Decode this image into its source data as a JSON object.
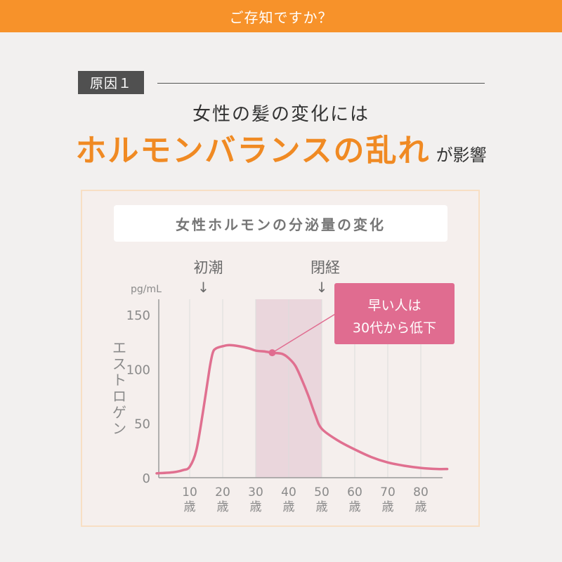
{
  "banner": {
    "text": "ご存知ですか？"
  },
  "reason": {
    "tag": "原因１"
  },
  "heading": {
    "line1": "女性の髪の変化には",
    "emphasis": "ホルモンバランスの乱れ",
    "suffix": "が影響"
  },
  "colors": {
    "banner": "#f7922a",
    "emphasis": "#f08a23",
    "curve": "#e07090",
    "highlight": "#e6cdd6",
    "callout": "#e06c90"
  },
  "chart_data": {
    "type": "line",
    "title": "女性ホルモンの分泌量の変化",
    "ylabel": "エストロゲン",
    "yunit": "pg/mL",
    "xlim": [
      0,
      88
    ],
    "ylim": [
      0,
      150
    ],
    "yticks": [
      0,
      50,
      100,
      150
    ],
    "xticks": [
      {
        "value": 10,
        "num": "10",
        "unit": "歳"
      },
      {
        "value": 20,
        "num": "20",
        "unit": "歳"
      },
      {
        "value": 30,
        "num": "30",
        "unit": "歳"
      },
      {
        "value": 40,
        "num": "40",
        "unit": "歳"
      },
      {
        "value": 50,
        "num": "50",
        "unit": "歳"
      },
      {
        "value": 60,
        "num": "60",
        "unit": "歳"
      },
      {
        "value": 70,
        "num": "70",
        "unit": "歳"
      },
      {
        "value": 80,
        "num": "80",
        "unit": "歳"
      }
    ],
    "series": [
      {
        "x": [
          0,
          5,
          8,
          10,
          12,
          14,
          16,
          17,
          18,
          20,
          22,
          25,
          28,
          30,
          33,
          35,
          38,
          40,
          42,
          44,
          46,
          48,
          50,
          55,
          60,
          65,
          70,
          75,
          80,
          85,
          88
        ],
        "y": [
          4,
          5,
          7,
          10,
          25,
          60,
          100,
          115,
          119,
          121,
          122,
          121,
          119,
          117,
          116,
          115,
          114,
          110,
          103,
          90,
          75,
          58,
          45,
          34,
          26,
          19,
          14,
          11,
          9,
          8,
          8
        ]
      }
    ],
    "highlight_band": [
      30,
      50
    ],
    "marker": {
      "x": 35,
      "y": 115
    },
    "callout": {
      "line1": "早い人は",
      "line2": "30代から低下"
    },
    "annotations": [
      {
        "x": 15,
        "text": "初潮",
        "arrow": "↓"
      },
      {
        "x": 50,
        "text": "閉経",
        "arrow": "↓"
      }
    ]
  }
}
